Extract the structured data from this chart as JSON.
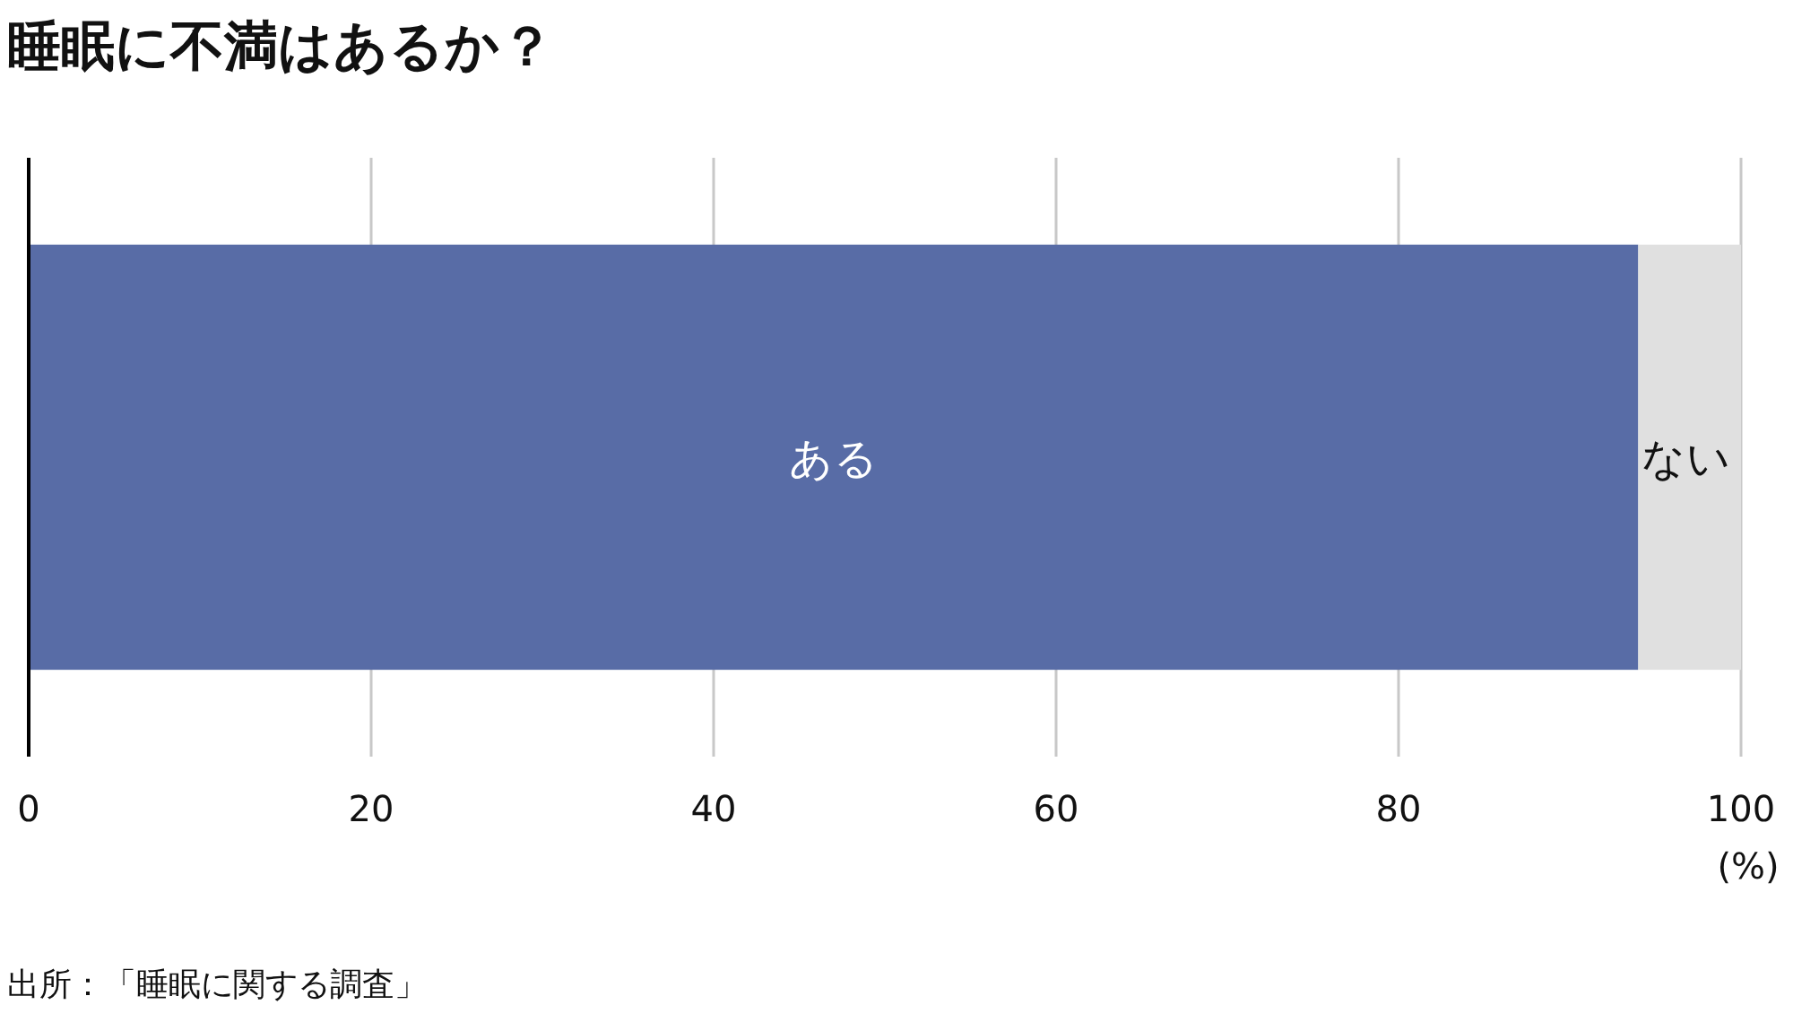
{
  "chart_data": {
    "type": "bar",
    "orientation": "horizontal",
    "stacked": true,
    "title": "睡眠に不満はあるか？",
    "xlabel": "(%)",
    "categories": [
      null
    ],
    "series": [
      {
        "name": "ある",
        "color": "#586ca6",
        "values": [
          94
        ]
      },
      {
        "name": "ない",
        "color": "#e0e0e0",
        "values": [
          6
        ]
      }
    ],
    "xlim": [
      0,
      100
    ],
    "xticks": [
      0,
      20,
      40,
      60,
      80,
      100
    ],
    "grid": "x",
    "annotations": [
      "出所：「睡眠に関する調査」"
    ]
  }
}
